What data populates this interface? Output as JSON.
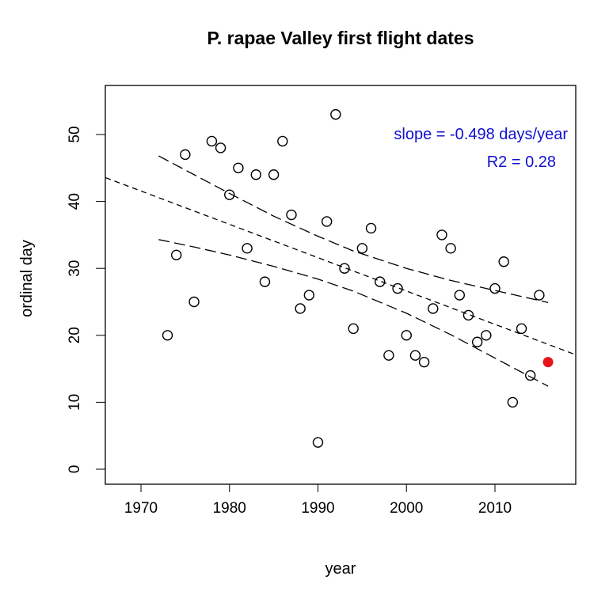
{
  "chart_data": {
    "type": "scatter",
    "title": "P. rapae Valley first flight dates",
    "xlabel": "year",
    "ylabel": "ordinal day",
    "xlim": [
      1966,
      2019
    ],
    "ylim": [
      -2,
      58
    ],
    "x_ticks": [
      1970,
      1980,
      1990,
      2000,
      2010
    ],
    "y_ticks": [
      0,
      10,
      20,
      30,
      40,
      50
    ],
    "grid": false,
    "points": [
      [
        1973,
        20
      ],
      [
        1974,
        32
      ],
      [
        1975,
        47
      ],
      [
        1976,
        25
      ],
      [
        1978,
        49
      ],
      [
        1979,
        48
      ],
      [
        1980,
        41
      ],
      [
        1981,
        45
      ],
      [
        1982,
        33
      ],
      [
        1983,
        44
      ],
      [
        1984,
        28
      ],
      [
        1985,
        44
      ],
      [
        1986,
        49
      ],
      [
        1987,
        38
      ],
      [
        1988,
        24
      ],
      [
        1989,
        26
      ],
      [
        1990,
        4
      ],
      [
        1991,
        37
      ],
      [
        1992,
        53
      ],
      [
        1993,
        30
      ],
      [
        1994,
        21
      ],
      [
        1995,
        33
      ],
      [
        1996,
        36
      ],
      [
        1997,
        28
      ],
      [
        1998,
        17
      ],
      [
        1999,
        27
      ],
      [
        2000,
        20
      ],
      [
        2001,
        17
      ],
      [
        2002,
        16
      ],
      [
        2003,
        24
      ],
      [
        2004,
        35
      ],
      [
        2005,
        33
      ],
      [
        2006,
        26
      ],
      [
        2007,
        23
      ],
      [
        2008,
        19
      ],
      [
        2009,
        20
      ],
      [
        2010,
        27
      ],
      [
        2011,
        31
      ],
      [
        2012,
        10
      ],
      [
        2013,
        21
      ],
      [
        2014,
        14
      ],
      [
        2015,
        26
      ]
    ],
    "highlight_point": {
      "x": 2016,
      "y": 16,
      "color": "#e8141a"
    },
    "regression": {
      "slope": -0.498,
      "value_at_1990": 31.6,
      "style": "dashed"
    },
    "confidence_band": {
      "x": [
        1972,
        1976,
        1980,
        1985,
        1990,
        1994,
        2000,
        2005,
        2010,
        2016
      ],
      "upper": [
        46.8,
        44.0,
        41.2,
        37.8,
        34.8,
        32.6,
        30.0,
        28.2,
        26.7,
        24.9
      ],
      "lower": [
        34.3,
        33.2,
        32.0,
        30.3,
        28.4,
        26.6,
        23.3,
        20.1,
        16.6,
        12.4
      ]
    },
    "annotations": {
      "slope_text": "slope = -0.498 days/year",
      "r2_text": "R2 = 0.28",
      "color": "#1010d0"
    }
  }
}
